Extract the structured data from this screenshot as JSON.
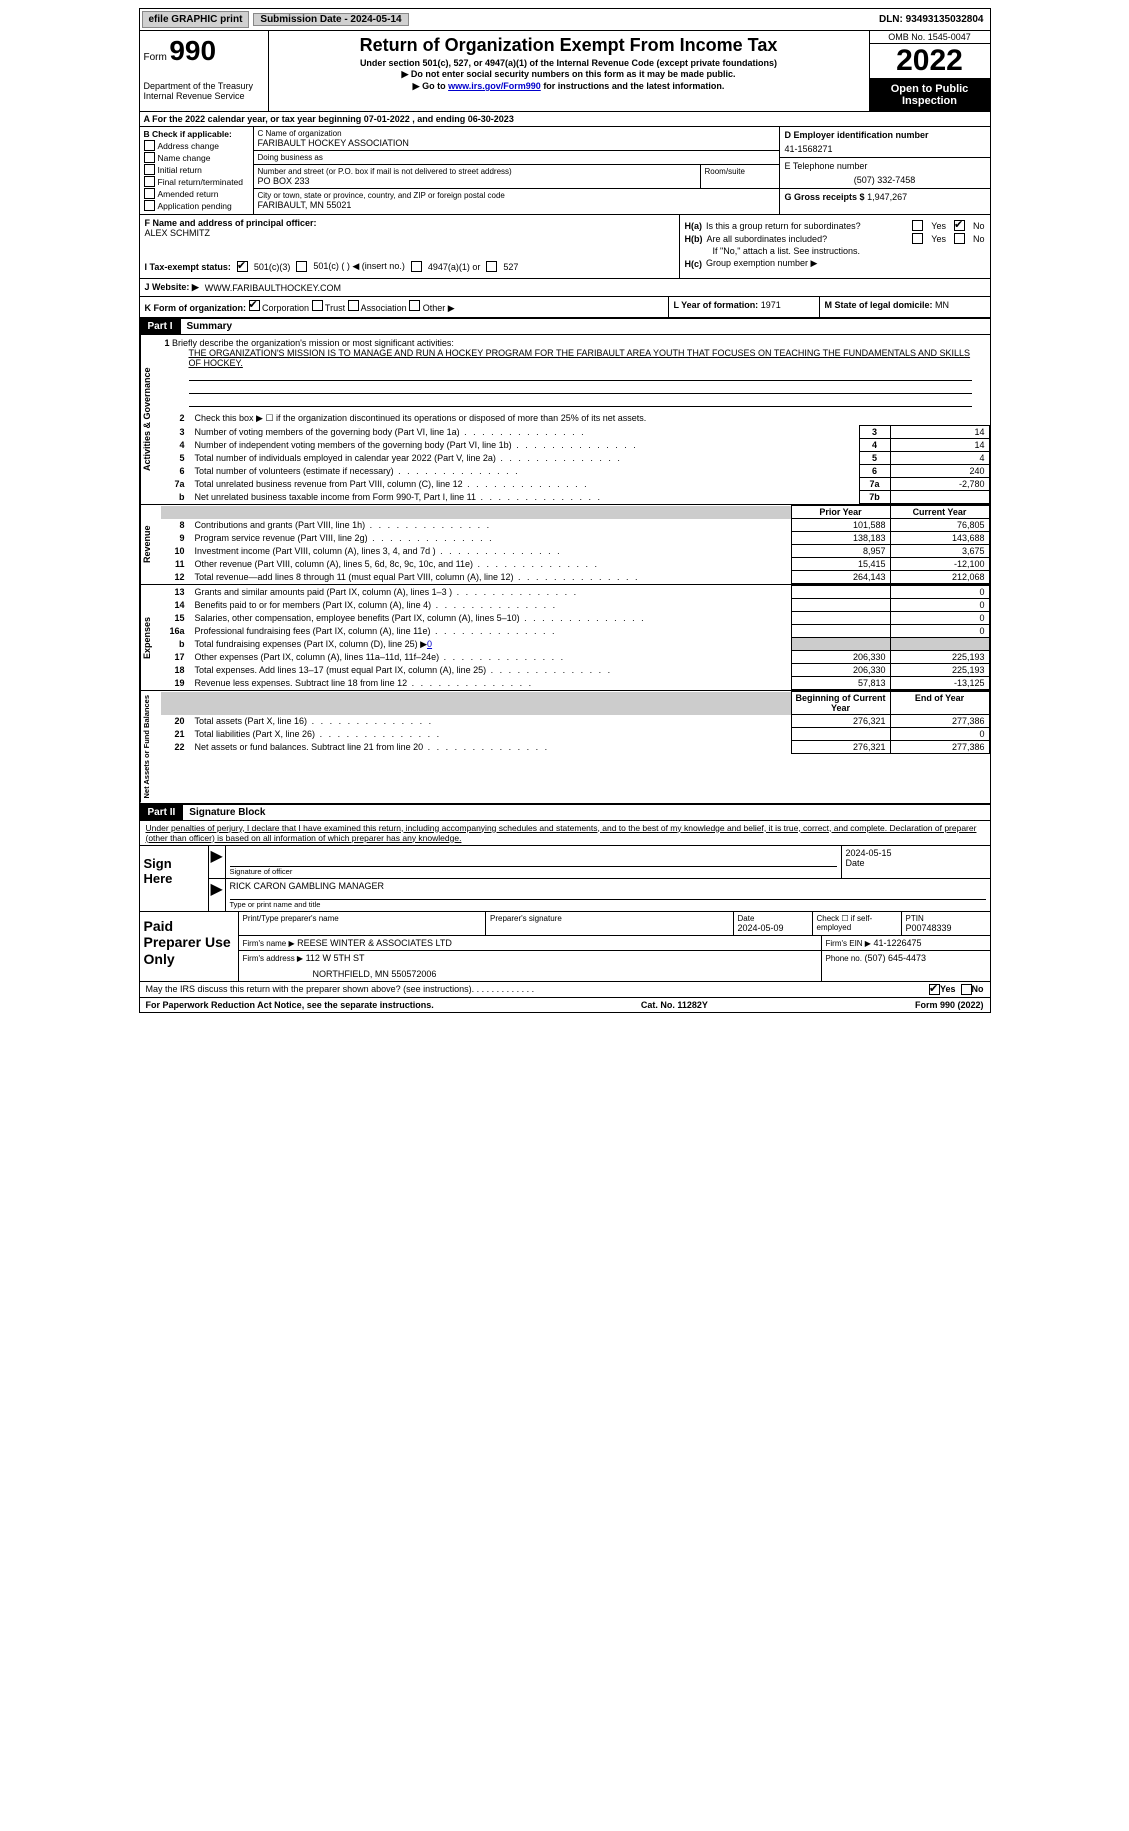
{
  "topbar": {
    "efile_btn": "efile GRAPHIC print",
    "sub_date_lbl": "Submission Date - 2024-05-14",
    "dln": "DLN: 93493135032804"
  },
  "header": {
    "form_label": "Form",
    "form_number": "990",
    "dept1": "Department of the Treasury",
    "dept2": "Internal Revenue Service",
    "title": "Return of Organization Exempt From Income Tax",
    "sub1": "Under section 501(c), 527, or 4947(a)(1) of the Internal Revenue Code (except private foundations)",
    "sub2": "▶ Do not enter social security numbers on this form as it may be made public.",
    "sub3_a": "▶ Go to ",
    "sub3_link": "www.irs.gov/Form990",
    "sub3_b": " for instructions and the latest information.",
    "omb": "OMB No. 1545-0047",
    "year": "2022",
    "open": "Open to Public Inspection"
  },
  "row_a": "A For the 2022 calendar year, or tax year beginning 07-01-2022    , and ending 06-30-2023",
  "col_b": {
    "lbl": "B Check if applicable:",
    "items": [
      "Address change",
      "Name change",
      "Initial return",
      "Final return/terminated",
      "Amended return",
      "Application pending"
    ]
  },
  "col_c": {
    "name_lbl": "C Name of organization",
    "name": "FARIBAULT HOCKEY ASSOCIATION",
    "dba_lbl": "Doing business as",
    "dba": "",
    "street_lbl": "Number and street (or P.O. box if mail is not delivered to street address)",
    "street": "PO BOX 233",
    "room_lbl": "Room/suite",
    "room": "",
    "city_lbl": "City or town, state or province, country, and ZIP or foreign postal code",
    "city": "FARIBAULT, MN  55021"
  },
  "col_d": {
    "ein_lbl": "D Employer identification number",
    "ein": "41-1568271",
    "phone_lbl": "E Telephone number",
    "phone": "(507) 332-7458",
    "gross_lbl": "G Gross receipts $",
    "gross": "1,947,267"
  },
  "fh": {
    "f_lbl": "F Name and address of principal officer:",
    "f_name": "ALEX SCHMITZ",
    "ha_lbl": "H(a)",
    "ha_txt": "Is this a group return for subordinates?",
    "hb_lbl": "H(b)",
    "hb_txt": "Are all subordinates included?",
    "hb_note": "If \"No,\" attach a list. See instructions.",
    "hc_lbl": "H(c)",
    "hc_txt": "Group exemption number ▶",
    "yes": "Yes",
    "no": "No"
  },
  "row_i": {
    "lbl": "I    Tax-exempt status:",
    "opt1": "501(c)(3)",
    "opt2": "501(c) (  ) ◀ (insert no.)",
    "opt3": "4947(a)(1) or",
    "opt4": "527"
  },
  "row_j": {
    "lbl": "J    Website: ▶",
    "val": "WWW.FARIBAULTHOCKEY.COM"
  },
  "row_k": {
    "lbl": "K Form of organization:",
    "corp": "Corporation",
    "trust": "Trust",
    "assoc": "Association",
    "other": "Other ▶",
    "l_lbl": "L Year of formation:",
    "l_val": "1971",
    "m_lbl": "M State of legal domicile:",
    "m_val": "MN"
  },
  "part1": {
    "no": "Part I",
    "title": "Summary",
    "tab1": "Activities & Governance",
    "tab2": "Revenue",
    "tab3": "Expenses",
    "tab4": "Net Assets or Fund Balances",
    "l1_lbl": "1",
    "l1_txt": "Briefly describe the organization's mission or most significant activities:",
    "l1_val": "THE ORGANIZATION'S MISSION IS TO MANAGE AND RUN A HOCKEY PROGRAM FOR THE FARIBAULT AREA YOUTH THAT FOCUSES ON TEACHING THE FUNDAMENTALS AND SKILLS OF HOCKEY.",
    "l2": "Check this box ▶ ☐ if the organization discontinued its operations or disposed of more than 25% of its net assets.",
    "lines_a": [
      {
        "n": "3",
        "t": "Number of voting members of the governing body (Part VI, line 1a)",
        "b": "3",
        "v": "14"
      },
      {
        "n": "4",
        "t": "Number of independent voting members of the governing body (Part VI, line 1b)",
        "b": "4",
        "v": "14"
      },
      {
        "n": "5",
        "t": "Total number of individuals employed in calendar year 2022 (Part V, line 2a)",
        "b": "5",
        "v": "4"
      },
      {
        "n": "6",
        "t": "Total number of volunteers (estimate if necessary)",
        "b": "6",
        "v": "240"
      },
      {
        "n": "7a",
        "t": "Total unrelated business revenue from Part VIII, column (C), line 12",
        "b": "7a",
        "v": "-2,780"
      },
      {
        "n": "b",
        "t": "Net unrelated business taxable income from Form 990-T, Part I, line 11",
        "b": "7b",
        "v": ""
      }
    ],
    "prior_h": "Prior Year",
    "cur_h": "Current Year",
    "rev": [
      {
        "n": "8",
        "t": "Contributions and grants (Part VIII, line 1h)",
        "p": "101,588",
        "c": "76,805"
      },
      {
        "n": "9",
        "t": "Program service revenue (Part VIII, line 2g)",
        "p": "138,183",
        "c": "143,688"
      },
      {
        "n": "10",
        "t": "Investment income (Part VIII, column (A), lines 3, 4, and 7d )",
        "p": "8,957",
        "c": "3,675"
      },
      {
        "n": "11",
        "t": "Other revenue (Part VIII, column (A), lines 5, 6d, 8c, 9c, 10c, and 11e)",
        "p": "15,415",
        "c": "-12,100"
      },
      {
        "n": "12",
        "t": "Total revenue—add lines 8 through 11 (must equal Part VIII, column (A), line 12)",
        "p": "264,143",
        "c": "212,068"
      }
    ],
    "exp": [
      {
        "n": "13",
        "t": "Grants and similar amounts paid (Part IX, column (A), lines 1–3 )",
        "p": "",
        "c": "0"
      },
      {
        "n": "14",
        "t": "Benefits paid to or for members (Part IX, column (A), line 4)",
        "p": "",
        "c": "0"
      },
      {
        "n": "15",
        "t": "Salaries, other compensation, employee benefits (Part IX, column (A), lines 5–10)",
        "p": "",
        "c": "0"
      },
      {
        "n": "16a",
        "t": "Professional fundraising fees (Part IX, column (A), line 11e)",
        "p": "",
        "c": "0"
      }
    ],
    "l16b_t": "Total fundraising expenses (Part IX, column (D), line 25) ▶",
    "l16b_v": "0",
    "exp2": [
      {
        "n": "17",
        "t": "Other expenses (Part IX, column (A), lines 11a–11d, 11f–24e)",
        "p": "206,330",
        "c": "225,193"
      },
      {
        "n": "18",
        "t": "Total expenses. Add lines 13–17 (must equal Part IX, column (A), line 25)",
        "p": "206,330",
        "c": "225,193"
      },
      {
        "n": "19",
        "t": "Revenue less expenses. Subtract line 18 from line 12",
        "p": "57,813",
        "c": "-13,125"
      }
    ],
    "boy_h": "Beginning of Current Year",
    "eoy_h": "End of Year",
    "net": [
      {
        "n": "20",
        "t": "Total assets (Part X, line 16)",
        "p": "276,321",
        "c": "277,386"
      },
      {
        "n": "21",
        "t": "Total liabilities (Part X, line 26)",
        "p": "",
        "c": "0"
      },
      {
        "n": "22",
        "t": "Net assets or fund balances. Subtract line 21 from line 20",
        "p": "276,321",
        "c": "277,386"
      }
    ]
  },
  "part2": {
    "no": "Part II",
    "title": "Signature Block",
    "intro": "Under penalties of perjury, I declare that I have examined this return, including accompanying schedules and statements, and to the best of my knowledge and belief, it is true, correct, and complete. Declaration of preparer (other than officer) is based on all information of which preparer has any knowledge.",
    "sign_here": "Sign Here",
    "sig_lbl": "Signature of officer",
    "sig_date": "2024-05-15",
    "date_lbl": "Date",
    "name_title": "RICK CARON  GAMBLING MANAGER",
    "name_title_lbl": "Type or print name and title",
    "paid_lbl": "Paid Preparer Use Only",
    "prep_name_h": "Print/Type preparer's name",
    "prep_name": "",
    "prep_sig_h": "Preparer's signature",
    "prep_date_h": "Date",
    "prep_date": "2024-05-09",
    "prep_chk_h": "Check ☐ if self-employed",
    "ptin_h": "PTIN",
    "ptin": "P00748339",
    "firm_name_h": "Firm's name    ▶",
    "firm_name": "REESE WINTER & ASSOCIATES LTD",
    "firm_ein_h": "Firm's EIN ▶",
    "firm_ein": "41-1226475",
    "firm_addr_h": "Firm's address ▶",
    "firm_addr1": "112 W 5TH ST",
    "firm_addr2": "NORTHFIELD, MN  550572006",
    "firm_phone_h": "Phone no.",
    "firm_phone": "(507) 645-4473"
  },
  "footer": {
    "discuss": "May the IRS discuss this return with the preparer shown above? (see instructions)",
    "yes": "Yes",
    "no": "No",
    "paperwork": "For Paperwork Reduction Act Notice, see the separate instructions.",
    "cat": "Cat. No. 11282Y",
    "form": "Form 990 (2022)"
  }
}
